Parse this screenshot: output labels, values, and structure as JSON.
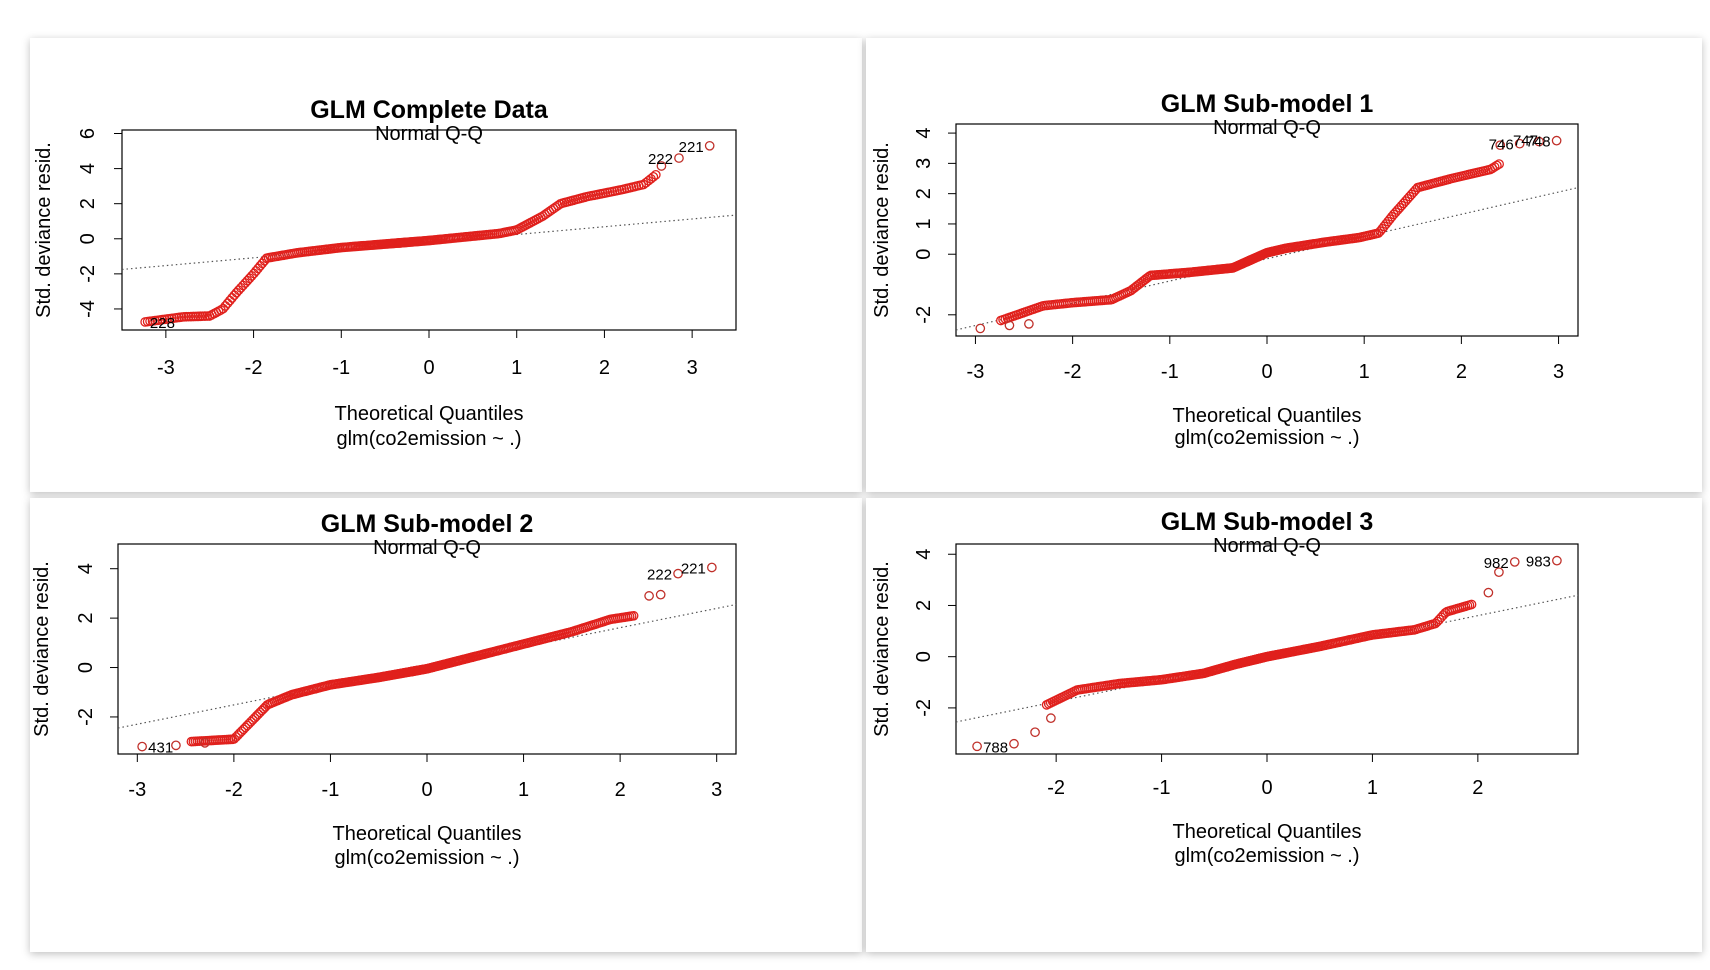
{
  "chart_data": [
    {
      "type": "scatter",
      "title": "GLM Complete Data",
      "subtitle": "Normal Q-Q",
      "xlabel": "Theoretical Quantiles",
      "xsub": "glm(co2emission ~ .)",
      "ylabel": "Std. deviance resid.",
      "xlim": [
        -3.5,
        3.5
      ],
      "ylim": [
        -5.2,
        6.2
      ],
      "xticks": [
        -3,
        -2,
        -1,
        0,
        1,
        2,
        3
      ],
      "yticks": [
        -4,
        -2,
        0,
        2,
        4,
        6
      ],
      "refline": [
        [
          -3.5,
          -1.75
        ],
        [
          3.5,
          1.35
        ]
      ],
      "knots": [
        [
          -3.25,
          -4.75
        ],
        [
          -2.8,
          -4.45
        ],
        [
          -2.5,
          -4.4
        ],
        [
          -2.35,
          -4.0
        ],
        [
          -2.2,
          -3.1
        ],
        [
          -2.0,
          -2.0
        ],
        [
          -1.85,
          -1.1
        ],
        [
          -1.5,
          -0.8
        ],
        [
          -1.0,
          -0.5
        ],
        [
          0.0,
          -0.1
        ],
        [
          0.8,
          0.3
        ],
        [
          1.0,
          0.5
        ],
        [
          1.3,
          1.3
        ],
        [
          1.5,
          2.0
        ],
        [
          1.8,
          2.4
        ],
        [
          2.2,
          2.8
        ],
        [
          2.45,
          3.1
        ],
        [
          2.6,
          3.7
        ]
      ],
      "n_points": 280,
      "extra_points": [
        [
          2.65,
          4.15
        ],
        [
          2.85,
          4.6
        ],
        [
          3.2,
          5.3
        ]
      ],
      "point_labels": [
        {
          "x": -3.25,
          "y": -4.75,
          "text": "228",
          "side": "right"
        },
        {
          "x": 2.85,
          "y": 4.6,
          "text": "222",
          "side": "left"
        },
        {
          "x": 3.2,
          "y": 5.3,
          "text": "221",
          "side": "left"
        }
      ]
    },
    {
      "type": "scatter",
      "title": "GLM Sub-model 1",
      "subtitle": "Normal Q-Q",
      "xlabel": "Theoretical Quantiles",
      "xsub": "glm(co2emission ~ .)",
      "ylabel": "Std. deviance resid.",
      "xlim": [
        -3.2,
        3.2
      ],
      "ylim": [
        -2.7,
        4.3
      ],
      "xticks": [
        -3,
        -2,
        -1,
        0,
        1,
        2,
        3
      ],
      "yticks": [
        -2,
        0,
        1,
        2,
        3,
        4
      ],
      "refline": [
        [
          -3.2,
          -2.5
        ],
        [
          3.2,
          2.2
        ]
      ],
      "knots": [
        [
          -2.75,
          -2.2
        ],
        [
          -2.3,
          -1.7
        ],
        [
          -2.0,
          -1.6
        ],
        [
          -1.6,
          -1.5
        ],
        [
          -1.4,
          -1.2
        ],
        [
          -1.2,
          -0.7
        ],
        [
          -0.8,
          -0.6
        ],
        [
          -0.35,
          -0.45
        ],
        [
          0.0,
          0.05
        ],
        [
          0.2,
          0.2
        ],
        [
          0.6,
          0.4
        ],
        [
          0.95,
          0.55
        ],
        [
          1.15,
          0.7
        ],
        [
          1.3,
          1.3
        ],
        [
          1.55,
          2.2
        ],
        [
          1.9,
          2.5
        ],
        [
          2.3,
          2.8
        ],
        [
          2.4,
          3.0
        ]
      ],
      "n_points": 300,
      "extra_points": [
        [
          -2.95,
          -2.45
        ],
        [
          -2.65,
          -2.35
        ],
        [
          -2.45,
          -2.3
        ],
        [
          2.4,
          3.6
        ],
        [
          2.6,
          3.65
        ],
        [
          2.8,
          3.72
        ],
        [
          2.98,
          3.75
        ]
      ],
      "point_labels": [
        {
          "x": 2.6,
          "y": 3.65,
          "text": "746",
          "side": "left"
        },
        {
          "x": 2.98,
          "y": 3.75,
          "text": "748",
          "side": "left"
        },
        {
          "x": 2.85,
          "y": 3.78,
          "text": "747",
          "side": "left"
        }
      ]
    },
    {
      "type": "scatter",
      "title": "GLM Sub-model 2",
      "subtitle": "Normal Q-Q",
      "xlabel": "Theoretical Quantiles",
      "xsub": "glm(co2emission ~ .)",
      "ylabel": "Std. deviance resid.",
      "xlim": [
        -3.2,
        3.2
      ],
      "ylim": [
        -3.5,
        5.0
      ],
      "xticks": [
        -3,
        -2,
        -1,
        0,
        1,
        2,
        3
      ],
      "yticks": [
        -2,
        0,
        2,
        4
      ],
      "refline": [
        [
          -3.2,
          -2.45
        ],
        [
          3.2,
          2.55
        ]
      ],
      "knots": [
        [
          -2.45,
          -3.0
        ],
        [
          -2.0,
          -2.9
        ],
        [
          -1.8,
          -2.1
        ],
        [
          -1.65,
          -1.5
        ],
        [
          -1.4,
          -1.1
        ],
        [
          -1.0,
          -0.7
        ],
        [
          -0.5,
          -0.4
        ],
        [
          0.0,
          -0.05
        ],
        [
          0.5,
          0.45
        ],
        [
          1.0,
          0.95
        ],
        [
          1.5,
          1.45
        ],
        [
          1.9,
          1.95
        ],
        [
          2.15,
          2.1
        ]
      ],
      "n_points": 300,
      "extra_points": [
        [
          -2.95,
          -3.2
        ],
        [
          -2.6,
          -3.15
        ],
        [
          -2.3,
          -3.05
        ],
        [
          2.3,
          2.9
        ],
        [
          2.42,
          2.95
        ],
        [
          2.6,
          3.8
        ],
        [
          2.95,
          4.05
        ]
      ],
      "point_labels": [
        {
          "x": -2.95,
          "y": -3.2,
          "text": "431",
          "side": "right"
        },
        {
          "x": 2.6,
          "y": 3.8,
          "text": "222",
          "side": "left"
        },
        {
          "x": 2.95,
          "y": 4.05,
          "text": "221",
          "side": "left"
        }
      ]
    },
    {
      "type": "scatter",
      "title": "GLM Sub-model 3",
      "subtitle": "Normal Q-Q",
      "xlabel": "Theoretical Quantiles",
      "xsub": "glm(co2emission ~ .)",
      "ylabel": "Std. deviance resid.",
      "xlim": [
        -2.95,
        2.95
      ],
      "ylim": [
        -3.8,
        4.4
      ],
      "xticks": [
        -2,
        -1,
        0,
        1,
        2
      ],
      "yticks": [
        -2,
        0,
        2,
        4
      ],
      "refline": [
        [
          -2.95,
          -2.55
        ],
        [
          2.95,
          2.4
        ]
      ],
      "knots": [
        [
          -2.1,
          -1.9
        ],
        [
          -1.8,
          -1.3
        ],
        [
          -1.4,
          -1.05
        ],
        [
          -1.0,
          -0.9
        ],
        [
          -0.6,
          -0.65
        ],
        [
          -0.3,
          -0.3
        ],
        [
          0.0,
          0.0
        ],
        [
          0.5,
          0.4
        ],
        [
          1.0,
          0.85
        ],
        [
          1.4,
          1.05
        ],
        [
          1.6,
          1.3
        ],
        [
          1.7,
          1.75
        ],
        [
          1.95,
          2.05
        ]
      ],
      "n_points": 280,
      "extra_points": [
        [
          -2.75,
          -3.5
        ],
        [
          -2.4,
          -3.4
        ],
        [
          -2.2,
          -2.95
        ],
        [
          -2.05,
          -2.4
        ],
        [
          2.1,
          2.5
        ],
        [
          2.2,
          3.3
        ],
        [
          2.35,
          3.7
        ],
        [
          2.75,
          3.75
        ]
      ],
      "point_labels": [
        {
          "x": -2.75,
          "y": -3.5,
          "text": "788",
          "side": "right"
        },
        {
          "x": 2.35,
          "y": 3.7,
          "text": "982",
          "side": "left"
        },
        {
          "x": 2.75,
          "y": 3.75,
          "text": "983",
          "side": "left"
        }
      ]
    }
  ]
}
